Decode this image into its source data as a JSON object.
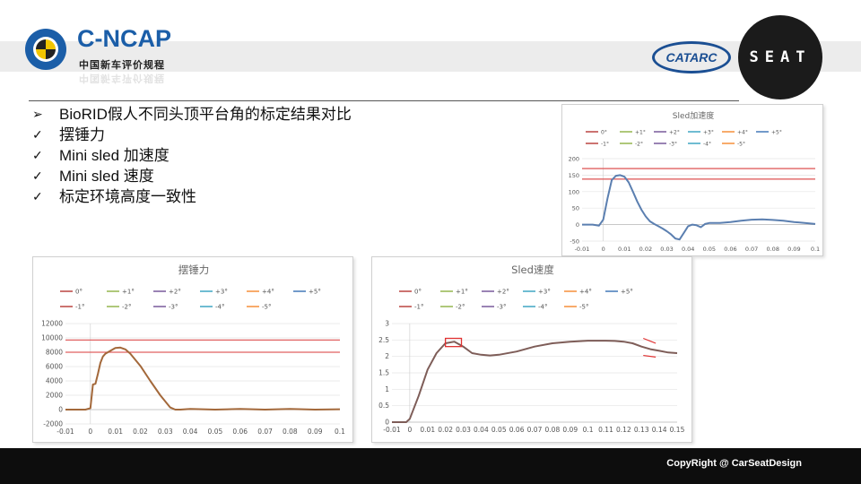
{
  "header": {
    "logo_left_text": "C-NCAP",
    "logo_left_sub": "中国新车评价规程",
    "logo_right_1": "CATARC",
    "logo_right_2": "SEAT"
  },
  "bullets": [
    {
      "mark": "➢",
      "text": "BioRID假人不同头顶平台角的标定结果对比"
    },
    {
      "mark": "✓",
      "text": "摆锤力"
    },
    {
      "mark": "✓",
      "text": "Mini sled 加速度"
    },
    {
      "mark": "✓",
      "text": "Mini sled 速度"
    },
    {
      "mark": "✓",
      "text": "标定环境高度一致性"
    }
  ],
  "footer": {
    "copyright": "CopyRight  @ CarSeatDesign"
  },
  "colors": {
    "limit_line": "#e06060",
    "series": {
      "0°": "#c0504d",
      "+1°": "#9bbb59",
      "+2°": "#8064a2",
      "+3°": "#4bacc6",
      "+4°": "#f79646",
      "+5°": "#4f81bd",
      "-1°": "#c0504d",
      "-2°": "#9bbb59",
      "-3°": "#8064a2",
      "-4°": "#4bacc6",
      "-5°": "#f79646"
    }
  },
  "chart_data": [
    {
      "type": "line",
      "title": "Sled加速度",
      "legend": [
        "0°",
        "+1°",
        "+2°",
        "+3°",
        "+4°",
        "+5°",
        "-1°",
        "-2°",
        "-3°",
        "-4°",
        "-5°"
      ],
      "xlim": [
        -0.01,
        0.1
      ],
      "ylim": [
        -50,
        200
      ],
      "xticks": [
        "-0.01",
        "0",
        "0.01",
        "0.02",
        "0.03",
        "0.04",
        "0.05",
        "0.06",
        "0.07",
        "0.08",
        "0.09",
        "0.1"
      ],
      "yticks": [
        "-50",
        "0",
        "50",
        "100",
        "150",
        "200"
      ],
      "limits": [
        170,
        138
      ],
      "series": [
        {
          "name": "0°",
          "x": [
            -0.01,
            -0.005,
            -0.002,
            0.0,
            0.002,
            0.004,
            0.006,
            0.008,
            0.01,
            0.012,
            0.014,
            0.016,
            0.018,
            0.02,
            0.022,
            0.024,
            0.026,
            0.028,
            0.03,
            0.032,
            0.034,
            0.036,
            0.038,
            0.04,
            0.042,
            0.044,
            0.046,
            0.048,
            0.05,
            0.055,
            0.06,
            0.065,
            0.07,
            0.075,
            0.08,
            0.085,
            0.09,
            0.095,
            0.1
          ],
          "y": [
            0,
            0,
            -3,
            15,
            80,
            135,
            148,
            150,
            145,
            128,
            100,
            70,
            45,
            25,
            10,
            2,
            -5,
            -12,
            -20,
            -30,
            -42,
            -45,
            -25,
            -5,
            0,
            -2,
            -8,
            2,
            5,
            5,
            8,
            12,
            15,
            16,
            14,
            12,
            8,
            5,
            2
          ]
        }
      ]
    },
    {
      "type": "line",
      "title": "摆锤力",
      "legend": [
        "0°",
        "+1°",
        "+2°",
        "+3°",
        "+4°",
        "+5°",
        "-1°",
        "-2°",
        "-3°",
        "-4°",
        "-5°"
      ],
      "xlim": [
        -0.01,
        0.1
      ],
      "ylim": [
        -2000,
        12000
      ],
      "xticks": [
        "-0.01",
        "0",
        "0.01",
        "0.02",
        "0.03",
        "0.04",
        "0.05",
        "0.06",
        "0.07",
        "0.08",
        "0.09",
        "0.1"
      ],
      "yticks": [
        "-2000",
        "0",
        "2000",
        "4000",
        "6000",
        "8000",
        "10000",
        "12000"
      ],
      "limits": [
        9700,
        8000
      ],
      "series": [
        {
          "name": "0°",
          "x": [
            -0.01,
            -0.002,
            0.0,
            0.001,
            0.002,
            0.003,
            0.004,
            0.005,
            0.006,
            0.008,
            0.01,
            0.012,
            0.014,
            0.016,
            0.02,
            0.024,
            0.028,
            0.032,
            0.034,
            0.036,
            0.04,
            0.05,
            0.06,
            0.07,
            0.08,
            0.09,
            0.1
          ],
          "y": [
            0,
            0,
            200,
            3500,
            3600,
            5000,
            6500,
            7400,
            7800,
            8200,
            8600,
            8650,
            8400,
            7800,
            6100,
            4000,
            2000,
            300,
            0,
            0,
            100,
            0,
            100,
            0,
            100,
            0,
            50
          ]
        }
      ]
    },
    {
      "type": "line",
      "title": "Sled速度",
      "legend": [
        "0°",
        "+1°",
        "+2°",
        "+3°",
        "+4°",
        "+5°",
        "-1°",
        "-2°",
        "-3°",
        "-4°",
        "-5°"
      ],
      "xlim": [
        -0.01,
        0.15
      ],
      "ylim": [
        0,
        3
      ],
      "xticks": [
        "-0.01",
        "0",
        "0.01",
        "0.02",
        "0.03",
        "0.04",
        "0.05",
        "0.06",
        "0.07",
        "0.08",
        "0.09",
        "0.1",
        "0.11",
        "0.12",
        "0.13",
        "0.14",
        "0.15"
      ],
      "yticks": [
        "0",
        "0.5",
        "1",
        "1.5",
        "2",
        "2.5",
        "3"
      ],
      "series": [
        {
          "name": "0°",
          "x": [
            -0.01,
            -0.002,
            0.0,
            0.005,
            0.01,
            0.015,
            0.02,
            0.025,
            0.03,
            0.035,
            0.04,
            0.045,
            0.05,
            0.06,
            0.07,
            0.08,
            0.09,
            0.1,
            0.11,
            0.115,
            0.12,
            0.125,
            0.13,
            0.135,
            0.14,
            0.145,
            0.15
          ],
          "y": [
            0,
            0,
            0.1,
            0.8,
            1.6,
            2.1,
            2.4,
            2.45,
            2.3,
            2.1,
            2.05,
            2.03,
            2.05,
            2.15,
            2.3,
            2.4,
            2.45,
            2.48,
            2.48,
            2.47,
            2.45,
            2.4,
            2.3,
            2.22,
            2.17,
            2.12,
            2.1
          ]
        }
      ]
    }
  ]
}
